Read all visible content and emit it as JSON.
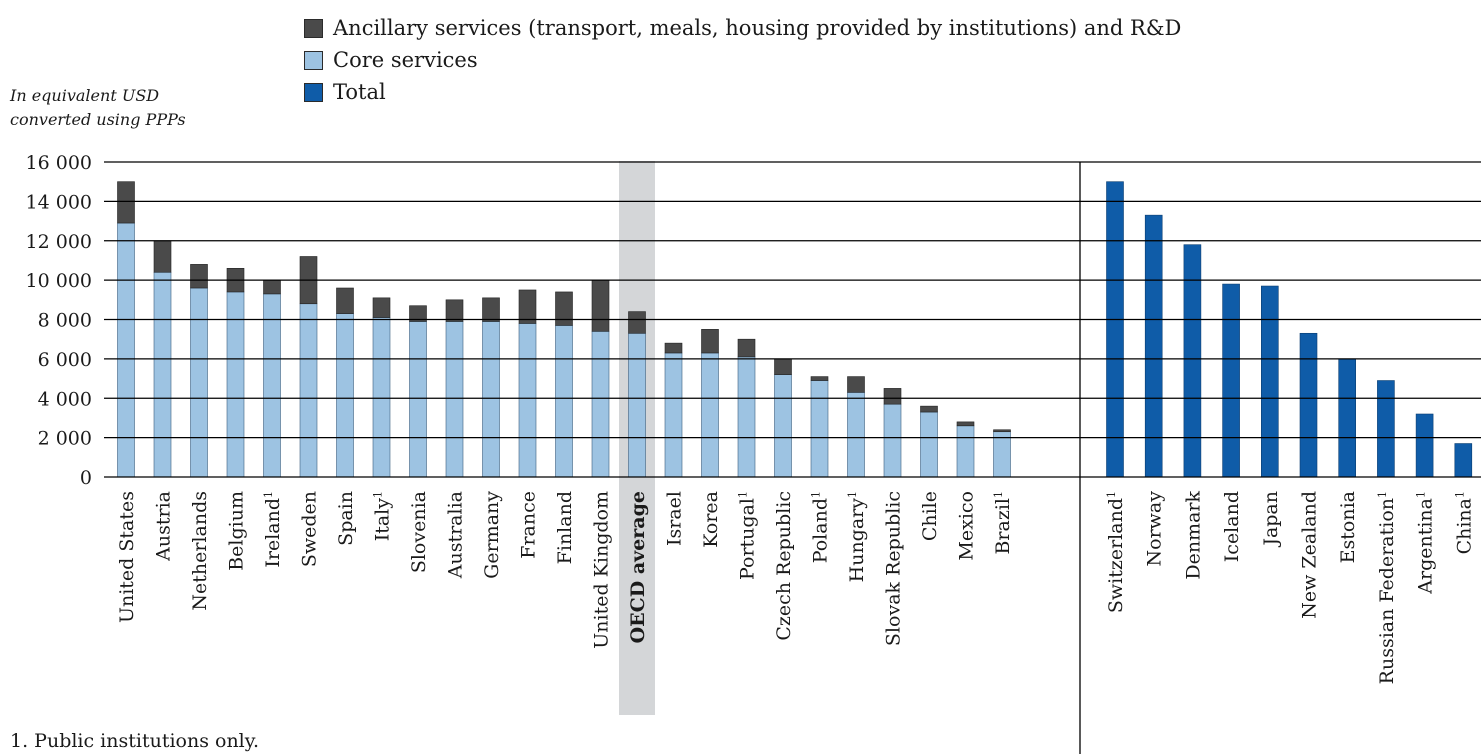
{
  "colors": {
    "ancillary": "#4a4a4a",
    "core": "#9dc3e2",
    "total": "#0f5ca8",
    "highlight": "#d4d6d8",
    "grid": "#000000"
  },
  "legend": {
    "items": [
      {
        "key": "ancillary",
        "label": "Ancillary services (transport, meals, housing provided by institutions) and R&D"
      },
      {
        "key": "core",
        "label": "Core services"
      },
      {
        "key": "total",
        "label": "Total"
      }
    ]
  },
  "unit_label": {
    "line1": "In equivalent USD",
    "line2": "converted using PPPs"
  },
  "footnote": "1. Public institutions only.",
  "chart_data": {
    "type": "bar",
    "stacked": true,
    "ylim": [
      0,
      16000
    ],
    "yticks": [
      0,
      2000,
      4000,
      6000,
      8000,
      10000,
      12000,
      14000,
      16000
    ],
    "ytick_labels": [
      "0",
      "2 000",
      "4 000",
      "6 000",
      "8 000",
      "10 000",
      "12 000",
      "14 000",
      "16 000"
    ],
    "grid": true,
    "legend_position": "top",
    "stacked_group": {
      "categories": [
        {
          "name": "United States",
          "note": "",
          "core": 12900,
          "total": 15000
        },
        {
          "name": "Austria",
          "note": "",
          "core": 10400,
          "total": 12000
        },
        {
          "name": "Netherlands",
          "note": "",
          "core": 9600,
          "total": 10800
        },
        {
          "name": "Belgium",
          "note": "",
          "core": 9400,
          "total": 10600
        },
        {
          "name": "Ireland",
          "note": "1",
          "core": 9300,
          "total": 10000
        },
        {
          "name": "Sweden",
          "note": "",
          "core": 8800,
          "total": 11200
        },
        {
          "name": "Spain",
          "note": "",
          "core": 8300,
          "total": 9600
        },
        {
          "name": "Italy",
          "note": "1",
          "core": 8100,
          "total": 9100
        },
        {
          "name": "Slovenia",
          "note": "",
          "core": 7900,
          "total": 8700
        },
        {
          "name": "Australia",
          "note": "",
          "core": 7900,
          "total": 9000
        },
        {
          "name": "Germany",
          "note": "",
          "core": 7900,
          "total": 9100
        },
        {
          "name": "France",
          "note": "",
          "core": 7800,
          "total": 9500
        },
        {
          "name": "Finland",
          "note": "",
          "core": 7700,
          "total": 9400
        },
        {
          "name": "United Kingdom",
          "note": "",
          "core": 7400,
          "total": 10000
        },
        {
          "name": "OECD average",
          "note": "",
          "core": 7300,
          "total": 8400,
          "highlight": true
        },
        {
          "name": "Israel",
          "note": "",
          "core": 6300,
          "total": 6800
        },
        {
          "name": "Korea",
          "note": "",
          "core": 6300,
          "total": 7500
        },
        {
          "name": "Portugal",
          "note": "1",
          "core": 6100,
          "total": 7000
        },
        {
          "name": "Czech Republic",
          "note": "",
          "core": 5200,
          "total": 6000
        },
        {
          "name": "Poland",
          "note": "1",
          "core": 4900,
          "total": 5100
        },
        {
          "name": "Hungary",
          "note": "1",
          "core": 4300,
          "total": 5100
        },
        {
          "name": "Slovak Republic",
          "note": "",
          "core": 3700,
          "total": 4500
        },
        {
          "name": "Chile",
          "note": "",
          "core": 3300,
          "total": 3600
        },
        {
          "name": "Mexico",
          "note": "",
          "core": 2600,
          "total": 2800
        },
        {
          "name": "Brazil",
          "note": "1",
          "core": 2300,
          "total": 2400
        }
      ]
    },
    "total_group": {
      "categories": [
        {
          "name": "Switzerland",
          "note": "1",
          "total": 15000
        },
        {
          "name": "Norway",
          "note": "",
          "total": 13300
        },
        {
          "name": "Denmark",
          "note": "",
          "total": 11800
        },
        {
          "name": "Iceland",
          "note": "",
          "total": 9800
        },
        {
          "name": "Japan",
          "note": "",
          "total": 9700
        },
        {
          "name": "New Zealand",
          "note": "",
          "total": 7300
        },
        {
          "name": "Estonia",
          "note": "",
          "total": 6000
        },
        {
          "name": "Russian Federation",
          "note": "1",
          "total": 4900
        },
        {
          "name": "Argentina",
          "note": "1",
          "total": 3200
        },
        {
          "name": "China",
          "note": "1",
          "total": 1700
        }
      ]
    }
  }
}
